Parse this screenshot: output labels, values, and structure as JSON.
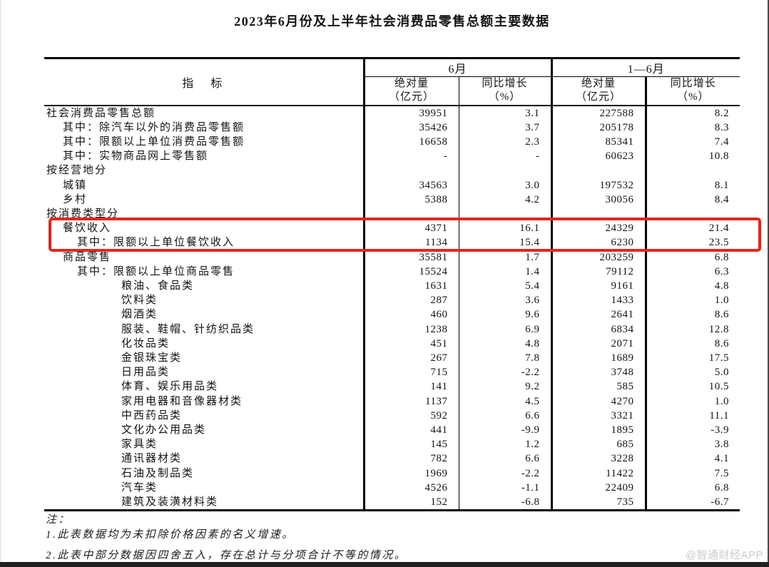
{
  "title": "2023年6月份及上半年社会消费品零售总额主要数据",
  "colors": {
    "highlight_red": "#e5261b"
  },
  "watermark": "@智通财经APP",
  "table": {
    "header": {
      "indicator": "指　标",
      "group_june": "6月",
      "group_h1": "1—6月",
      "sub_abs_l1": "绝对量",
      "sub_abs_l2": "（亿元）",
      "sub_yoy_l1": "同比增长",
      "sub_yoy_l2": "（%）"
    },
    "rows": [
      {
        "label": "社会消费品零售总额",
        "indent": 0,
        "jun_abs": "39951",
        "jun_yoy": "3.1",
        "h1_abs": "227588",
        "h1_yoy": "8.2",
        "highlight": false
      },
      {
        "label": "其中：除汽车以外的消费品零售额",
        "indent": 1,
        "jun_abs": "35426",
        "jun_yoy": "3.7",
        "h1_abs": "205178",
        "h1_yoy": "8.3",
        "highlight": false
      },
      {
        "label": "其中：限额以上单位消费品零售额",
        "indent": 1,
        "jun_abs": "16658",
        "jun_yoy": "2.3",
        "h1_abs": "85341",
        "h1_yoy": "7.4",
        "highlight": false
      },
      {
        "label": "其中：实物商品网上零售额",
        "indent": 1,
        "jun_abs": "-",
        "jun_yoy": "-",
        "h1_abs": "60623",
        "h1_yoy": "10.8",
        "highlight": false
      },
      {
        "label": "按经营地分",
        "indent": 0,
        "jun_abs": "",
        "jun_yoy": "",
        "h1_abs": "",
        "h1_yoy": "",
        "highlight": false
      },
      {
        "label": "城镇",
        "indent": 1,
        "jun_abs": "34563",
        "jun_yoy": "3.0",
        "h1_abs": "197532",
        "h1_yoy": "8.1",
        "highlight": false
      },
      {
        "label": "乡村",
        "indent": 1,
        "jun_abs": "5388",
        "jun_yoy": "4.2",
        "h1_abs": "30056",
        "h1_yoy": "8.4",
        "highlight": false
      },
      {
        "label": "按消费类型分",
        "indent": 0,
        "jun_abs": "",
        "jun_yoy": "",
        "h1_abs": "",
        "h1_yoy": "",
        "highlight": false
      },
      {
        "label": "餐饮收入",
        "indent": 1,
        "jun_abs": "4371",
        "jun_yoy": "16.1",
        "h1_abs": "24329",
        "h1_yoy": "21.4",
        "highlight": true
      },
      {
        "label": "其中：限额以上单位餐饮收入",
        "indent": 2,
        "jun_abs": "1134",
        "jun_yoy": "15.4",
        "h1_abs": "6230",
        "h1_yoy": "23.5",
        "highlight": true
      },
      {
        "label": "商品零售",
        "indent": 1,
        "jun_abs": "35581",
        "jun_yoy": "1.7",
        "h1_abs": "203259",
        "h1_yoy": "6.8",
        "highlight": false
      },
      {
        "label": "其中：限额以上单位商品零售",
        "indent": 2,
        "jun_abs": "15524",
        "jun_yoy": "1.4",
        "h1_abs": "79112",
        "h1_yoy": "6.3",
        "highlight": false
      },
      {
        "label": "粮油、食品类",
        "indent": 3,
        "jun_abs": "1631",
        "jun_yoy": "5.4",
        "h1_abs": "9161",
        "h1_yoy": "4.8",
        "highlight": false
      },
      {
        "label": "饮料类",
        "indent": 3,
        "jun_abs": "287",
        "jun_yoy": "3.6",
        "h1_abs": "1433",
        "h1_yoy": "1.0",
        "highlight": false
      },
      {
        "label": "烟酒类",
        "indent": 3,
        "jun_abs": "460",
        "jun_yoy": "9.6",
        "h1_abs": "2641",
        "h1_yoy": "8.6",
        "highlight": false
      },
      {
        "label": "服装、鞋帽、针纺织品类",
        "indent": 3,
        "jun_abs": "1238",
        "jun_yoy": "6.9",
        "h1_abs": "6834",
        "h1_yoy": "12.8",
        "highlight": false
      },
      {
        "label": "化妆品类",
        "indent": 3,
        "jun_abs": "451",
        "jun_yoy": "4.8",
        "h1_abs": "2071",
        "h1_yoy": "8.6",
        "highlight": false
      },
      {
        "label": "金银珠宝类",
        "indent": 3,
        "jun_abs": "267",
        "jun_yoy": "7.8",
        "h1_abs": "1689",
        "h1_yoy": "17.5",
        "highlight": false
      },
      {
        "label": "日用品类",
        "indent": 3,
        "jun_abs": "715",
        "jun_yoy": "-2.2",
        "h1_abs": "3748",
        "h1_yoy": "5.0",
        "highlight": false
      },
      {
        "label": "体育、娱乐用品类",
        "indent": 3,
        "jun_abs": "141",
        "jun_yoy": "9.2",
        "h1_abs": "585",
        "h1_yoy": "10.5",
        "highlight": false
      },
      {
        "label": "家用电器和音像器材类",
        "indent": 3,
        "jun_abs": "1137",
        "jun_yoy": "4.5",
        "h1_abs": "4270",
        "h1_yoy": "1.0",
        "highlight": false
      },
      {
        "label": "中西药品类",
        "indent": 3,
        "jun_abs": "592",
        "jun_yoy": "6.6",
        "h1_abs": "3321",
        "h1_yoy": "11.1",
        "highlight": false
      },
      {
        "label": "文化办公用品类",
        "indent": 3,
        "jun_abs": "441",
        "jun_yoy": "-9.9",
        "h1_abs": "1895",
        "h1_yoy": "-3.9",
        "highlight": false
      },
      {
        "label": "家具类",
        "indent": 3,
        "jun_abs": "145",
        "jun_yoy": "1.2",
        "h1_abs": "685",
        "h1_yoy": "3.8",
        "highlight": false
      },
      {
        "label": "通讯器材类",
        "indent": 3,
        "jun_abs": "782",
        "jun_yoy": "6.6",
        "h1_abs": "3228",
        "h1_yoy": "4.1",
        "highlight": false
      },
      {
        "label": "石油及制品类",
        "indent": 3,
        "jun_abs": "1969",
        "jun_yoy": "-2.2",
        "h1_abs": "11422",
        "h1_yoy": "7.5",
        "highlight": false
      },
      {
        "label": "汽车类",
        "indent": 3,
        "jun_abs": "4526",
        "jun_yoy": "-1.1",
        "h1_abs": "22409",
        "h1_yoy": "6.8",
        "highlight": false
      },
      {
        "label": "建筑及装潢材料类",
        "indent": 3,
        "jun_abs": "152",
        "jun_yoy": "-6.8",
        "h1_abs": "735",
        "h1_yoy": "-6.7",
        "highlight": false
      }
    ],
    "notes": {
      "label": "注：",
      "note1": "1.此表数据均为未扣除价格因素的名义增速。",
      "note2": "2.此表中部分数据因四舍五入，存在总计与分项合计不等的情况。"
    }
  }
}
